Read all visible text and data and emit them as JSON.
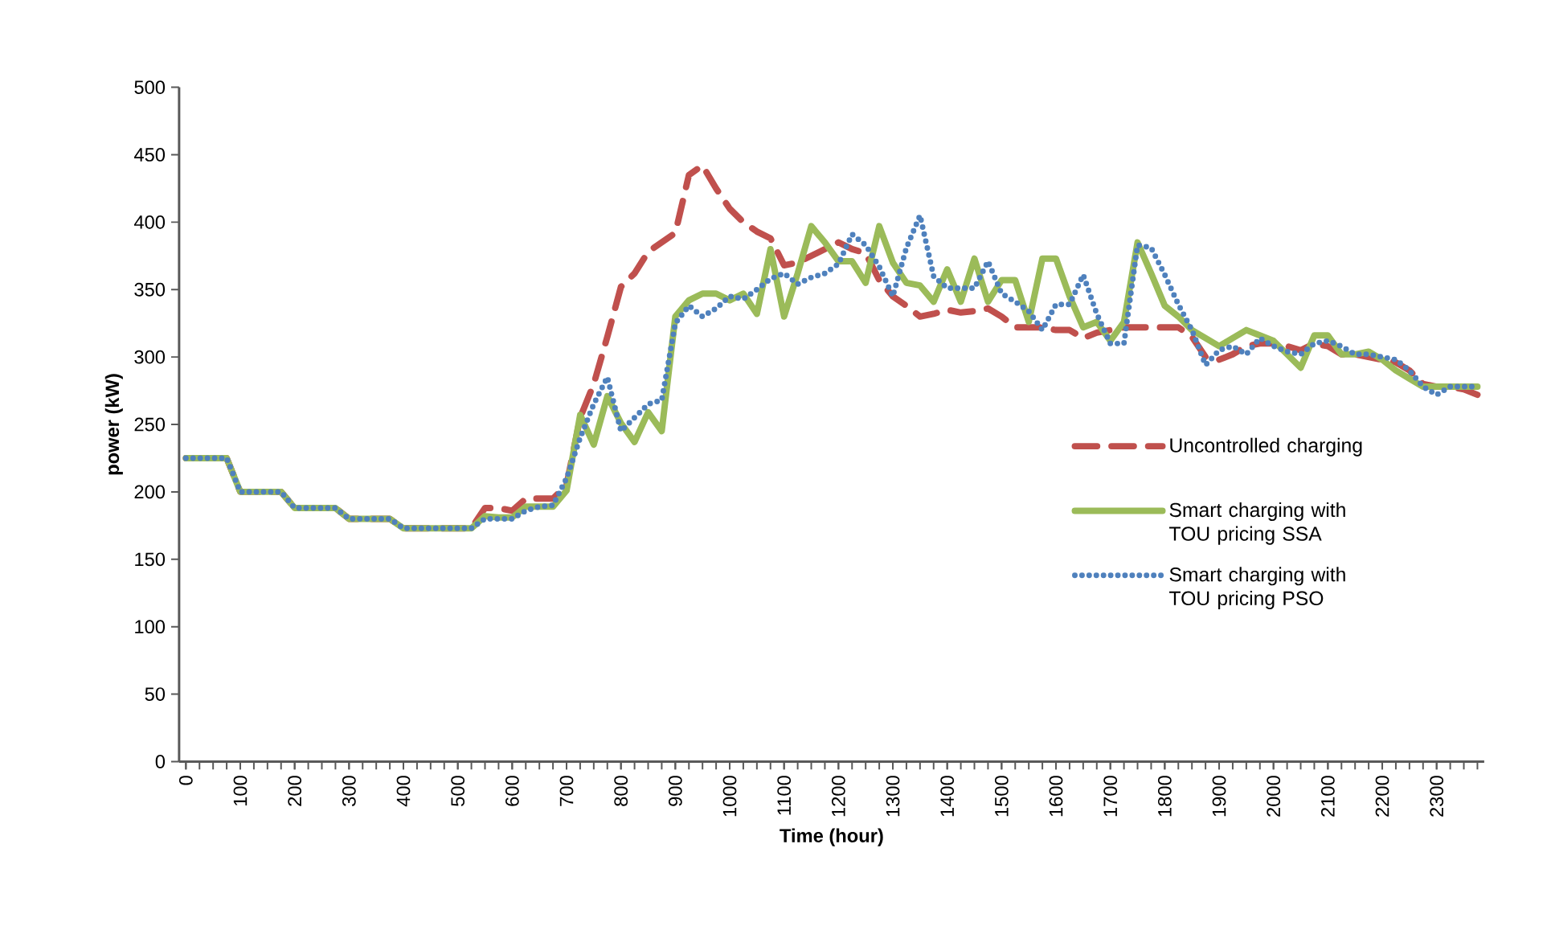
{
  "chart_data": {
    "type": "line",
    "xlabel": "Time (hour)",
    "ylabel": "power (kW)",
    "categories": [
      "0",
      null,
      null,
      null,
      "100",
      null,
      null,
      null,
      "200",
      null,
      null,
      null,
      "300",
      null,
      null,
      null,
      "400",
      null,
      null,
      null,
      "500",
      null,
      null,
      null,
      "600",
      null,
      null,
      null,
      "700",
      null,
      null,
      null,
      "800",
      null,
      null,
      null,
      "900",
      null,
      null,
      null,
      "1000",
      null,
      null,
      null,
      "1100",
      null,
      null,
      null,
      "1200",
      null,
      null,
      null,
      "1300",
      null,
      null,
      null,
      "1400",
      null,
      null,
      null,
      "1500",
      null,
      null,
      null,
      "1600",
      null,
      null,
      null,
      "1700",
      null,
      null,
      null,
      "1800",
      null,
      null,
      null,
      "1900",
      null,
      null,
      null,
      "2000",
      null,
      null,
      null,
      "2100",
      null,
      null,
      null,
      "2200",
      null,
      null,
      null,
      "2300",
      null,
      null,
      null
    ],
    "ylim": [
      0,
      500
    ],
    "yticks": [
      0,
      50,
      100,
      150,
      200,
      250,
      300,
      350,
      400,
      450,
      500
    ],
    "legend": "right",
    "series": [
      {
        "name": "Uncontrolled charging",
        "color": "#c0504d",
        "line_style": "dashed",
        "values": [
          225,
          225,
          225,
          225,
          200,
          200,
          200,
          200,
          188,
          188,
          188,
          188,
          180,
          180,
          180,
          180,
          173,
          173,
          173,
          173,
          173,
          173,
          188,
          188,
          186,
          195,
          195,
          195,
          205,
          255,
          280,
          315,
          352,
          362,
          378,
          385,
          392,
          435,
          442,
          425,
          410,
          400,
          393,
          388,
          368,
          370,
          375,
          380,
          385,
          380,
          377,
          357,
          345,
          338,
          330,
          332,
          335,
          333,
          334,
          336,
          330,
          322,
          322,
          322,
          320,
          320,
          314,
          318,
          320,
          322,
          322,
          322,
          322,
          322,
          315,
          300,
          298,
          302,
          308,
          310,
          310,
          308,
          305,
          310,
          308,
          302,
          302,
          300,
          298,
          296,
          290,
          280,
          278,
          278,
          276,
          272
        ]
      },
      {
        "name": "Smart charging with TOU pricing SSA",
        "color": "#9bbb59",
        "line_style": "solid",
        "values": [
          225,
          225,
          225,
          225,
          200,
          200,
          200,
          200,
          188,
          188,
          188,
          188,
          180,
          180,
          180,
          180,
          173,
          173,
          173,
          173,
          173,
          173,
          182,
          181,
          181,
          189,
          189,
          189,
          201,
          257,
          235,
          271,
          251,
          237,
          259,
          245,
          330,
          342,
          347,
          347,
          342,
          347,
          332,
          380,
          330,
          362,
          397,
          385,
          371,
          371,
          355,
          397,
          370,
          355,
          353,
          341,
          365,
          341,
          373,
          341,
          357,
          357,
          326,
          373,
          373,
          345,
          322,
          326,
          312,
          326,
          385,
          362,
          338,
          330,
          320,
          314,
          308,
          314,
          320,
          316,
          312,
          302,
          292,
          316,
          316,
          302,
          302,
          304,
          298,
          290,
          284,
          278,
          278,
          278,
          278,
          278
        ]
      },
      {
        "name": "Smart charging with TOU pricing PSO",
        "color": "#4f81bd",
        "line_style": "dotted",
        "values": [
          225,
          225,
          225,
          225,
          200,
          200,
          200,
          200,
          188,
          188,
          188,
          188,
          180,
          180,
          180,
          180,
          173,
          173,
          173,
          173,
          173,
          173,
          180,
          180,
          180,
          186,
          189,
          190,
          210,
          240,
          265,
          285,
          245,
          255,
          265,
          268,
          325,
          338,
          330,
          336,
          345,
          343,
          350,
          358,
          362,
          354,
          359,
          362,
          369,
          391,
          383,
          367,
          345,
          381,
          405,
          360,
          351,
          351,
          351,
          371,
          347,
          341,
          334,
          320,
          339,
          339,
          361,
          332,
          310,
          310,
          383,
          381,
          361,
          339,
          320,
          294,
          305,
          308,
          302,
          314,
          308,
          304,
          302,
          310,
          312,
          308,
          302,
          302,
          300,
          298,
          290,
          278,
          272,
          278,
          278,
          278
        ]
      }
    ]
  }
}
